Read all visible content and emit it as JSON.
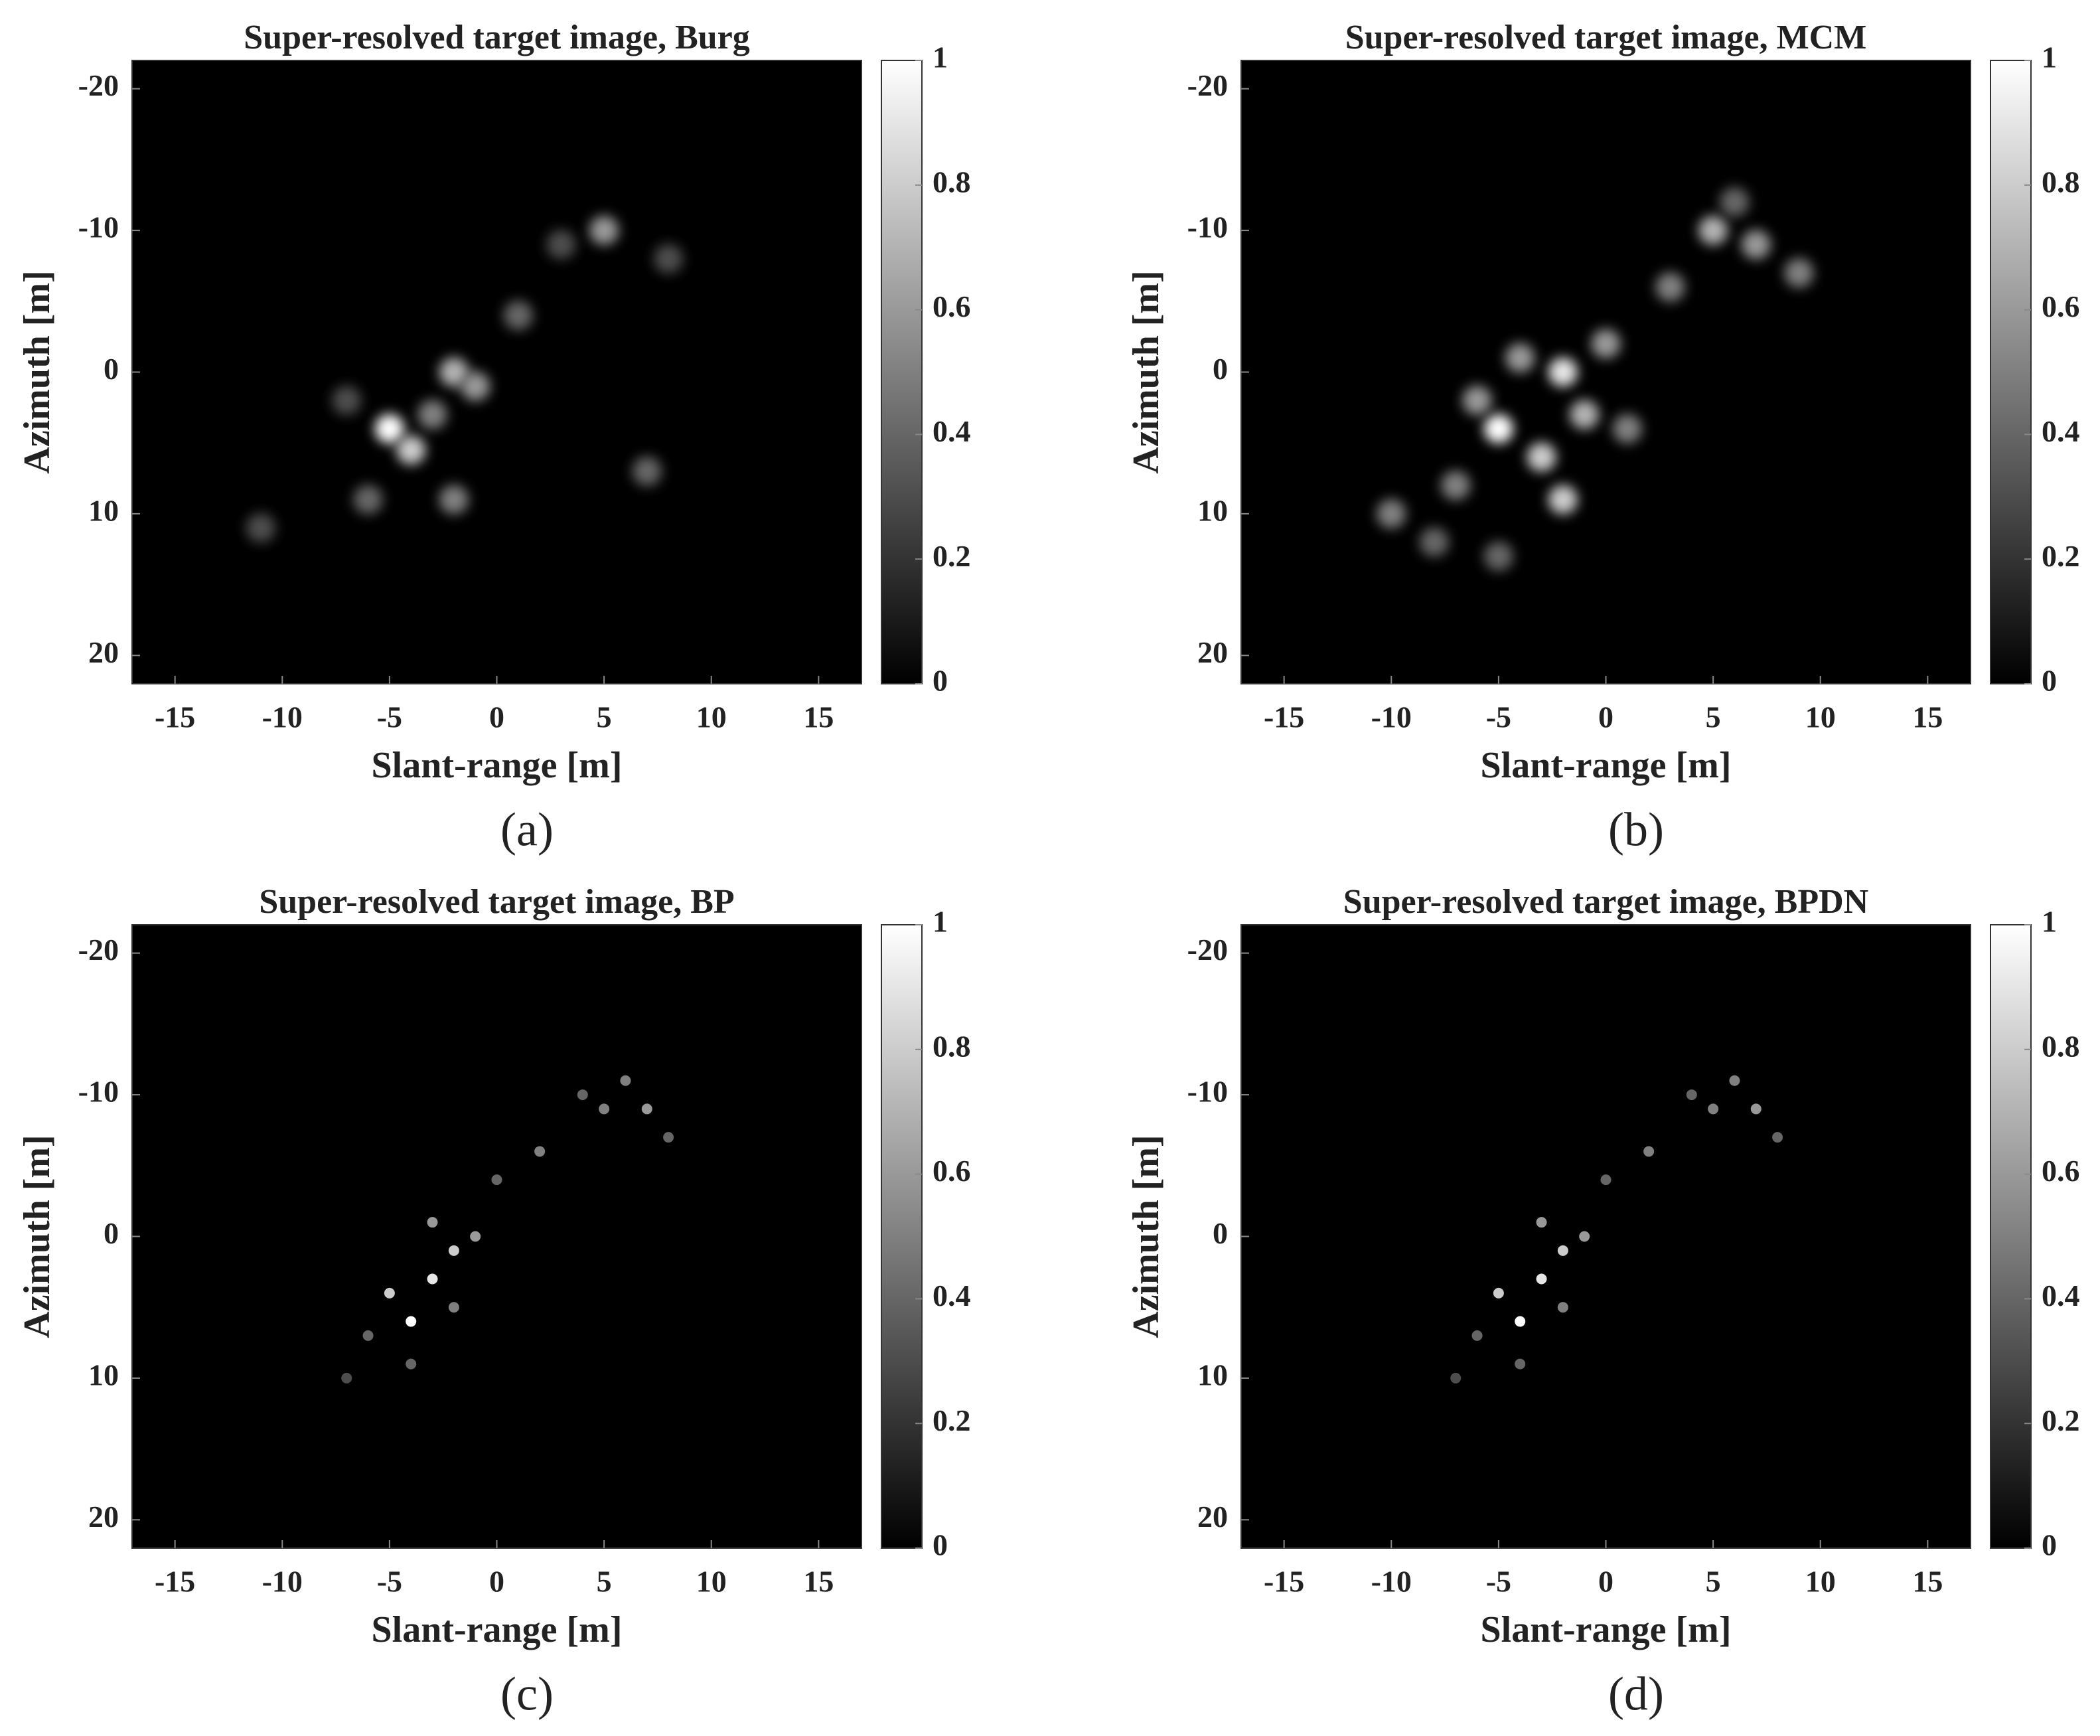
{
  "chart_data": [
    {
      "type": "heatmap",
      "title": "Super-resolved target image, Burg",
      "xlabel": "Slant-range [m]",
      "ylabel": "Azimuth [m]",
      "panel_label": "(a)",
      "xlim": [
        -17,
        17
      ],
      "ylim": [
        -22,
        22
      ],
      "xticks": [
        -15,
        -10,
        -5,
        0,
        5,
        10,
        15
      ],
      "yticks": [
        -20,
        -10,
        0,
        10,
        20
      ],
      "clim": [
        0,
        1
      ],
      "cticks": [
        0,
        0.2,
        0.4,
        0.6,
        0.8,
        1
      ],
      "points": {
        "x": [
          -5,
          -4,
          -2,
          -1,
          5,
          -3,
          -2,
          7,
          -6,
          1,
          8,
          -11,
          3,
          -7
        ],
        "y": [
          4,
          5.5,
          0,
          1,
          -10,
          3,
          9,
          7,
          9,
          -4,
          -8,
          11,
          -9,
          2
        ],
        "values": [
          1,
          0.8,
          0.7,
          0.6,
          0.6,
          0.5,
          0.5,
          0.4,
          0.4,
          0.4,
          0.3,
          0.3,
          0.3,
          0.3
        ]
      }
    },
    {
      "type": "heatmap",
      "title": "Super-resolved target image, MCM",
      "xlabel": "Slant-range [m]",
      "ylabel": "Azimuth [m]",
      "panel_label": "(b)",
      "xlim": [
        -17,
        17
      ],
      "ylim": [
        -22,
        22
      ],
      "xticks": [
        -15,
        -10,
        -5,
        0,
        5,
        10,
        15
      ],
      "yticks": [
        -20,
        -10,
        0,
        10,
        20
      ],
      "clim": [
        0,
        1
      ],
      "cticks": [
        0,
        0.2,
        0.4,
        0.6,
        0.8,
        1
      ],
      "points": {
        "x": [
          -5,
          -3,
          -2,
          -4,
          0,
          5,
          7,
          9,
          -2,
          -7,
          -10,
          -5,
          1,
          3,
          6,
          -6,
          -1,
          -8
        ],
        "y": [
          4,
          6,
          0,
          -1,
          -2,
          -10,
          -9,
          -7,
          9,
          8,
          10,
          13,
          4,
          -6,
          -12,
          2,
          3,
          12
        ],
        "values": [
          1,
          0.8,
          0.9,
          0.6,
          0.6,
          0.7,
          0.6,
          0.5,
          0.8,
          0.5,
          0.5,
          0.4,
          0.5,
          0.5,
          0.4,
          0.6,
          0.7,
          0.4
        ]
      }
    },
    {
      "type": "heatmap",
      "title": "Super-resolved target image, BP",
      "xlabel": "Slant-range [m]",
      "ylabel": "Azimuth [m]",
      "panel_label": "(c)",
      "xlim": [
        -17,
        17
      ],
      "ylim": [
        -22,
        22
      ],
      "xticks": [
        -15,
        -10,
        -5,
        0,
        5,
        10,
        15
      ],
      "yticks": [
        -20,
        -10,
        0,
        10,
        20
      ],
      "clim": [
        0,
        1
      ],
      "cticks": [
        0,
        0.2,
        0.4,
        0.6,
        0.8,
        1
      ],
      "points": {
        "x": [
          -4,
          -5,
          -3,
          -2,
          -1,
          -3,
          6,
          7,
          5,
          8,
          2,
          0,
          -6,
          -7,
          -4,
          4,
          -2
        ],
        "y": [
          6,
          4,
          3,
          1,
          0,
          -1,
          -11,
          -9,
          -9,
          -7,
          -6,
          -4,
          7,
          10,
          9,
          -10,
          5
        ],
        "values": [
          1,
          0.8,
          0.9,
          0.8,
          0.6,
          0.6,
          0.5,
          0.6,
          0.5,
          0.4,
          0.5,
          0.4,
          0.4,
          0.3,
          0.4,
          0.4,
          0.5
        ]
      }
    },
    {
      "type": "heatmap",
      "title": "Super-resolved target image, BPDN",
      "xlabel": "Slant-range [m]",
      "ylabel": "Azimuth [m]",
      "panel_label": "(d)",
      "xlim": [
        -17,
        17
      ],
      "ylim": [
        -22,
        22
      ],
      "xticks": [
        -15,
        -10,
        -5,
        0,
        5,
        10,
        15
      ],
      "yticks": [
        -20,
        -10,
        0,
        10,
        20
      ],
      "clim": [
        0,
        1
      ],
      "cticks": [
        0,
        0.2,
        0.4,
        0.6,
        0.8,
        1
      ],
      "points": {
        "x": [
          -4,
          -5,
          -3,
          -2,
          -1,
          -3,
          6,
          7,
          5,
          8,
          2,
          0,
          -6,
          -7,
          -4,
          4,
          -2
        ],
        "y": [
          6,
          4,
          3,
          1,
          0,
          -1,
          -11,
          -9,
          -9,
          -7,
          -6,
          -4,
          7,
          10,
          9,
          -10,
          5
        ],
        "values": [
          1,
          0.8,
          0.9,
          0.8,
          0.6,
          0.6,
          0.5,
          0.6,
          0.5,
          0.4,
          0.5,
          0.4,
          0.4,
          0.3,
          0.4,
          0.4,
          0.5
        ]
      }
    }
  ]
}
